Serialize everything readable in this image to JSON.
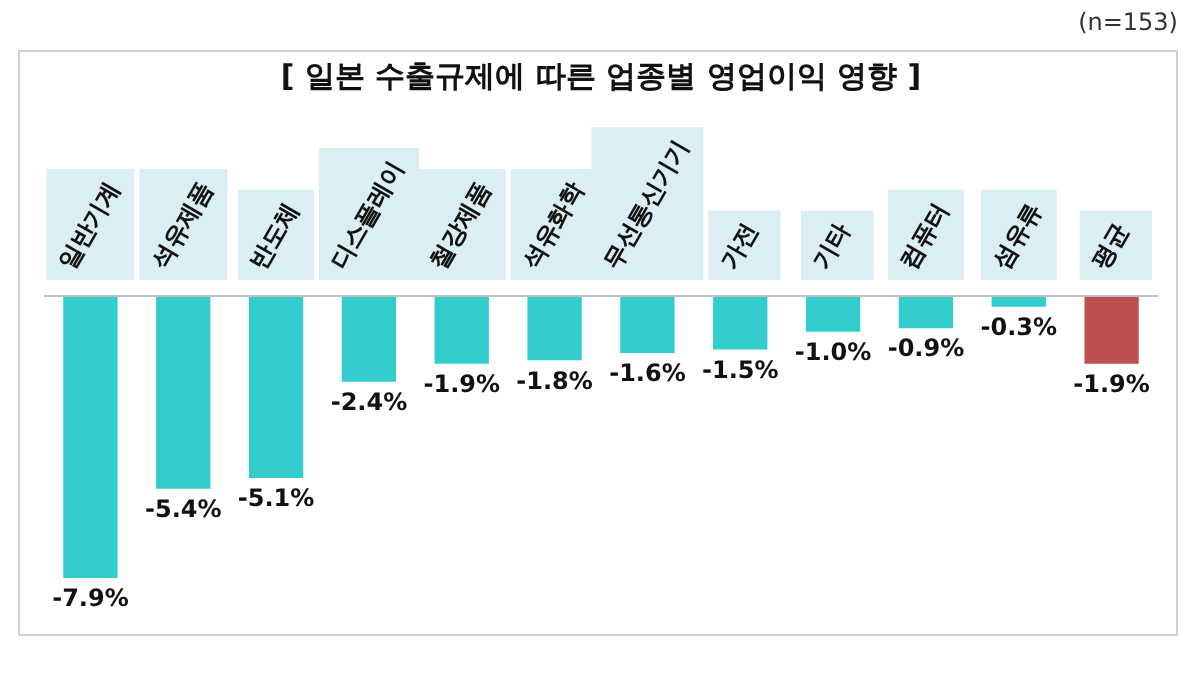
{
  "chart_data": {
    "type": "bar",
    "title": "[ 일본 수출규제에 따른 업종별 영업이익 영향 ]",
    "annotations": [
      "(n=153)"
    ],
    "categories": [
      "일반기계",
      "석유제품",
      "반도체",
      "디스플레이",
      "철강제품",
      "석유화학",
      "무선통신기기",
      "가전",
      "기타",
      "컴퓨터",
      "섬유류",
      "평균"
    ],
    "values": [
      -7.9,
      -5.4,
      -5.1,
      -2.4,
      -1.9,
      -1.8,
      -1.6,
      -1.5,
      -1.0,
      -0.9,
      -0.3,
      -1.9
    ],
    "value_labels": [
      "-7.9%",
      "-5.4%",
      "-5.1%",
      "-2.4%",
      "-1.9%",
      "-1.8%",
      "-1.6%",
      "-1.5%",
      "-1.0%",
      "-0.9%",
      "-0.3%",
      "-1.9%"
    ],
    "colors": [
      "#33cccc",
      "#33cccc",
      "#33cccc",
      "#33cccc",
      "#33cccc",
      "#33cccc",
      "#33cccc",
      "#33cccc",
      "#33cccc",
      "#33cccc",
      "#33cccc",
      "#c0504d"
    ],
    "legend": false
  }
}
